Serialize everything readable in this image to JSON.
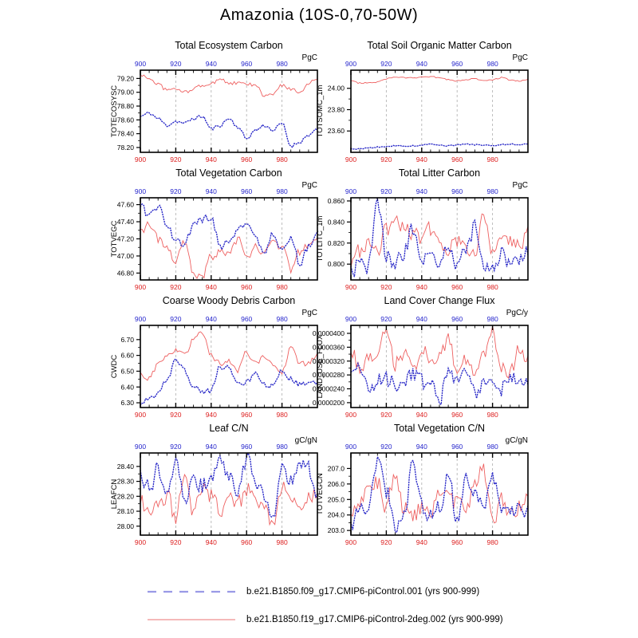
{
  "page_title": "Amazonia (10S-0,70-50W)",
  "colors": {
    "series_control_blue": "#2b2bc8",
    "series_2deg_red": "#ee6060",
    "top_axis_labels": "#2525cc",
    "bottom_axis_labels": "#dd2020",
    "grid": "#b5b5b5",
    "frame": "#000000",
    "legend_control_blue": "#9a9ae6",
    "legend_2deg_red": "#f2a2a2"
  },
  "legend": {
    "entries": [
      {
        "label": "b.e21.B1850.f09_g17.CMIP6-piControl.001 (yrs 900-999)",
        "style": "dashed",
        "color": "#9a9ae6"
      },
      {
        "label": "b.e21.B1850.f19_g17.CMIP6-piControl-2deg.002 (yrs 900-999)",
        "style": "solid",
        "color": "#f2a2a2"
      }
    ]
  },
  "chart_data": [
    {
      "type": "line",
      "title": "Total Ecosystem Carbon",
      "unit": "PgC",
      "ylabel": "TOTECOSYSC",
      "xlim": [
        900,
        1000
      ],
      "xticks": [
        900,
        920,
        940,
        960,
        980
      ],
      "grid_x": [
        920,
        940,
        960,
        980
      ],
      "ylim": [
        78.13,
        79.32
      ],
      "ytick_values": [
        79.2,
        79.0,
        78.8,
        78.6,
        78.4,
        78.2
      ],
      "ytick_labels": [
        "79.20",
        "79.00",
        "78.80",
        "78.60",
        "78.40",
        "78.20"
      ],
      "x": [
        900,
        905,
        910,
        915,
        920,
        925,
        930,
        935,
        940,
        945,
        950,
        955,
        960,
        965,
        970,
        975,
        980,
        985,
        990,
        995,
        1000
      ],
      "noise": 0.025,
      "series": [
        {
          "name": "b.e21.B1850.f09_g17.CMIP6-piControl.001",
          "values": [
            78.65,
            78.7,
            78.62,
            78.52,
            78.58,
            78.55,
            78.62,
            78.65,
            78.47,
            78.52,
            78.62,
            78.5,
            78.33,
            78.45,
            78.52,
            78.45,
            78.55,
            78.22,
            78.28,
            78.38,
            78.45
          ]
        },
        {
          "name": "b.e21.B1850.f19_g17.CMIP6-piControl-2deg.002",
          "values": [
            79.25,
            79.2,
            79.12,
            79.03,
            79.05,
            79.0,
            79.05,
            79.1,
            79.12,
            79.2,
            79.13,
            79.13,
            79.12,
            79.1,
            78.95,
            78.97,
            79.1,
            79.05,
            79.0,
            79.13,
            79.2
          ]
        }
      ]
    },
    {
      "type": "line",
      "title": "Total Soil Organic Matter Carbon",
      "unit": "PgC",
      "ylabel": "TOTSOMC_1m",
      "xlim": [
        900,
        1000
      ],
      "xticks": [
        900,
        920,
        940,
        960,
        980
      ],
      "grid_x": [
        920,
        940,
        960,
        980
      ],
      "ylim": [
        23.4,
        24.17
      ],
      "ytick_values": [
        24.0,
        23.8,
        23.6
      ],
      "ytick_labels": [
        "24.00",
        "23.80",
        "23.60"
      ],
      "x": [
        900,
        905,
        910,
        915,
        920,
        925,
        930,
        935,
        940,
        945,
        950,
        955,
        960,
        965,
        970,
        975,
        980,
        985,
        990,
        995,
        1000
      ],
      "noise": 0.006,
      "series": [
        {
          "name": "b.e21.B1850.f09_g17.CMIP6-piControl.001",
          "values": [
            23.43,
            23.43,
            23.44,
            23.45,
            23.45,
            23.46,
            23.46,
            23.46,
            23.47,
            23.48,
            23.47,
            23.46,
            23.47,
            23.48,
            23.47,
            23.47,
            23.46,
            23.47,
            23.48,
            23.47,
            23.48
          ]
        },
        {
          "name": "b.e21.B1850.f19_g17.CMIP6-piControl-2deg.002",
          "values": [
            24.07,
            24.05,
            24.05,
            24.06,
            24.09,
            24.1,
            24.1,
            24.1,
            24.1,
            24.11,
            24.1,
            24.08,
            24.07,
            24.08,
            24.09,
            24.07,
            24.08,
            24.1,
            24.08,
            24.07,
            24.08
          ]
        }
      ]
    },
    {
      "type": "line",
      "title": "Total Vegetation Carbon",
      "unit": "PgC",
      "ylabel": "TOTVEGC",
      "xlim": [
        900,
        1000
      ],
      "xticks": [
        900,
        920,
        940,
        960,
        980
      ],
      "grid_x": [
        920,
        940,
        960,
        980
      ],
      "ylim": [
        46.72,
        47.68
      ],
      "ytick_values": [
        47.6,
        47.4,
        47.2,
        47.0,
        46.8
      ],
      "ytick_labels": [
        "47.60",
        "47.40",
        "47.20",
        "47.00",
        "46.80"
      ],
      "x": [
        900,
        905,
        910,
        915,
        920,
        925,
        930,
        935,
        940,
        945,
        950,
        955,
        960,
        965,
        970,
        975,
        980,
        985,
        990,
        995,
        1000
      ],
      "noise": 0.05,
      "series": [
        {
          "name": "b.e21.B1850.f09_g17.CMIP6-piControl.001",
          "values": [
            47.6,
            47.45,
            47.57,
            47.38,
            47.18,
            47.15,
            47.35,
            47.42,
            47.45,
            47.12,
            47.15,
            47.3,
            47.37,
            47.25,
            47.0,
            47.25,
            47.1,
            47.2,
            46.92,
            47.1,
            47.25
          ]
        },
        {
          "name": "b.e21.B1850.f19_g17.CMIP6-piControl-2deg.002",
          "values": [
            47.3,
            47.36,
            47.2,
            47.08,
            46.95,
            47.15,
            46.8,
            46.75,
            47.0,
            47.05,
            47.0,
            47.2,
            47.0,
            47.1,
            47.05,
            47.15,
            47.1,
            46.85,
            47.05,
            47.15,
            47.2
          ]
        }
      ]
    },
    {
      "type": "line",
      "title": "Total Litter Carbon",
      "unit": "PgC",
      "ylabel": "TOTLITC_1m",
      "xlim": [
        900,
        1000
      ],
      "xticks": [
        900,
        920,
        940,
        960,
        980
      ],
      "grid_x": [
        920,
        940,
        960,
        980
      ],
      "ylim": [
        0.785,
        0.863
      ],
      "ytick_values": [
        0.86,
        0.84,
        0.82,
        0.8
      ],
      "ytick_labels": [
        "0.860",
        "0.840",
        "0.820",
        "0.800"
      ],
      "x": [
        900,
        905,
        910,
        915,
        920,
        925,
        930,
        935,
        940,
        945,
        950,
        955,
        960,
        965,
        970,
        975,
        980,
        985,
        990,
        995,
        1000
      ],
      "noise": 0.008,
      "series": [
        {
          "name": "b.e21.B1850.f09_g17.CMIP6-piControl.001",
          "values": [
            0.79,
            0.8,
            0.798,
            0.858,
            0.808,
            0.8,
            0.812,
            0.835,
            0.8,
            0.812,
            0.802,
            0.812,
            0.8,
            0.81,
            0.836,
            0.8,
            0.792,
            0.812,
            0.8,
            0.802,
            0.81
          ]
        },
        {
          "name": "b.e21.B1850.f19_g17.CMIP6-piControl-2deg.002",
          "values": [
            0.8,
            0.812,
            0.82,
            0.815,
            0.832,
            0.84,
            0.832,
            0.83,
            0.82,
            0.835,
            0.82,
            0.812,
            0.822,
            0.815,
            0.81,
            0.849,
            0.81,
            0.83,
            0.82,
            0.815,
            0.832
          ]
        }
      ]
    },
    {
      "type": "line",
      "title": "Coarse Woody Debris Carbon",
      "unit": "PgC",
      "ylabel": "CWDC",
      "xlim": [
        900,
        1000
      ],
      "xticks": [
        900,
        920,
        940,
        960,
        980
      ],
      "grid_x": [
        920,
        940,
        960,
        980
      ],
      "ylim": [
        6.27,
        6.79
      ],
      "ytick_values": [
        6.7,
        6.6,
        6.5,
        6.4,
        6.3
      ],
      "ytick_labels": [
        "6.70",
        "6.60",
        "6.50",
        "6.40",
        "6.30"
      ],
      "x": [
        900,
        905,
        910,
        915,
        920,
        925,
        930,
        935,
        940,
        945,
        950,
        955,
        960,
        965,
        970,
        975,
        980,
        985,
        990,
        995,
        1000
      ],
      "noise": 0.018,
      "series": [
        {
          "name": "b.e21.B1850.f09_g17.CMIP6-piControl.001",
          "values": [
            6.28,
            6.33,
            6.35,
            6.45,
            6.57,
            6.5,
            6.4,
            6.37,
            6.38,
            6.53,
            6.52,
            6.42,
            6.43,
            6.48,
            6.42,
            6.4,
            6.5,
            6.45,
            6.42,
            6.43,
            6.42
          ]
        },
        {
          "name": "b.e21.B1850.f19_g17.CMIP6-piControl-2deg.002",
          "values": [
            6.48,
            6.45,
            6.55,
            6.6,
            6.63,
            6.6,
            6.7,
            6.75,
            6.6,
            6.55,
            6.57,
            6.5,
            6.62,
            6.55,
            6.6,
            6.55,
            6.5,
            6.65,
            6.55,
            6.55,
            6.6
          ]
        }
      ]
    },
    {
      "type": "line",
      "title": "Land Cover Change Flux",
      "unit": "PgC/y",
      "ylabel": "LAND_USE_FLUX",
      "xlim": [
        900,
        1000
      ],
      "xticks": [
        900,
        920,
        940,
        960,
        980
      ],
      "grid_x": [
        920,
        940,
        960,
        980
      ],
      "ylim": [
        1.86e-05,
        4.23e-05
      ],
      "ytick_values": [
        4e-05,
        3.6e-05,
        3.2e-05,
        2.8e-05,
        2.4e-05,
        2e-05
      ],
      "ytick_labels": [
        "0.0000400",
        "0.0000360",
        "0.0000320",
        "0.0000280",
        "0.0000240",
        "0.0000200"
      ],
      "x": [
        900,
        905,
        910,
        915,
        920,
        925,
        930,
        935,
        940,
        945,
        950,
        955,
        960,
        965,
        970,
        975,
        980,
        985,
        990,
        995,
        1000
      ],
      "noise": 2.2e-06,
      "series": [
        {
          "name": "b.e21.B1850.f09_g17.CMIP6-piControl.001",
          "values": [
            2.8e-05,
            3e-05,
            2.4e-05,
            2.62e-05,
            2.7e-05,
            2.52e-05,
            2.62e-05,
            2.8e-05,
            2.62e-05,
            2.5e-05,
            2.05e-05,
            2.8e-05,
            2.7e-05,
            2.82e-05,
            2.25e-05,
            2.52e-05,
            2.62e-05,
            2.4e-05,
            2.8e-05,
            2.52e-05,
            2.5e-05
          ]
        },
        {
          "name": "b.e21.B1850.f19_g17.CMIP6-piControl-2deg.002",
          "values": [
            3.5e-05,
            3.02e-05,
            3.3e-05,
            3.52e-05,
            4.05e-05,
            3.12e-05,
            3.4e-05,
            2.92e-05,
            3.6e-05,
            3.1e-05,
            3.32e-05,
            3.8e-05,
            3.02e-05,
            3.22e-05,
            2.92e-05,
            3.3e-05,
            4.1e-05,
            3.02e-05,
            2.92e-05,
            3.5e-05,
            3.2e-05
          ]
        }
      ]
    },
    {
      "type": "line",
      "title": "Leaf C/N",
      "unit": "gC/gN",
      "ylabel": "LEAFCN",
      "xlim": [
        900,
        1000
      ],
      "xticks": [
        900,
        920,
        940,
        960,
        980
      ],
      "grid_x": [
        920,
        940,
        960,
        980
      ],
      "ylim": [
        27.94,
        28.49
      ],
      "ytick_values": [
        28.4,
        28.3,
        28.2,
        28.1,
        28.0
      ],
      "ytick_labels": [
        "28.40",
        "28.30",
        "28.20",
        "28.10",
        "28.00"
      ],
      "x": [
        900,
        905,
        910,
        915,
        920,
        925,
        930,
        935,
        940,
        945,
        950,
        955,
        960,
        965,
        970,
        975,
        980,
        985,
        990,
        995,
        1000
      ],
      "noise": 0.055,
      "series": [
        {
          "name": "b.e21.B1850.f09_g17.CMIP6-piControl.001",
          "values": [
            28.33,
            28.25,
            28.39,
            28.25,
            28.45,
            28.15,
            28.3,
            28.27,
            28.3,
            28.44,
            28.35,
            28.2,
            28.45,
            28.3,
            28.2,
            28.05,
            28.38,
            28.3,
            28.42,
            28.39,
            28.2
          ]
        },
        {
          "name": "b.e21.B1850.f19_g17.CMIP6-piControl-2deg.002",
          "values": [
            28.16,
            28.1,
            28.18,
            28.2,
            28.07,
            28.3,
            28.1,
            28.25,
            28.2,
            28.1,
            28.2,
            28.15,
            28.25,
            28.15,
            28.15,
            27.97,
            28.25,
            28.2,
            28.1,
            28.2,
            28.2
          ]
        }
      ]
    },
    {
      "type": "line",
      "title": "Total Vegetation C/N",
      "unit": "gC/gN",
      "ylabel": "TOTVEGCN",
      "xlim": [
        900,
        1000
      ],
      "xticks": [
        900,
        920,
        940,
        960,
        980
      ],
      "grid_x": [
        920,
        940,
        960,
        980
      ],
      "ylim": [
        202.7,
        208.0
      ],
      "ytick_values": [
        207.0,
        206.0,
        205.0,
        204.0,
        203.0
      ],
      "ytick_labels": [
        "207.0",
        "206.0",
        "205.0",
        "204.0",
        "203.0"
      ],
      "x": [
        900,
        905,
        910,
        915,
        920,
        925,
        930,
        935,
        940,
        945,
        950,
        955,
        960,
        965,
        970,
        975,
        980,
        985,
        990,
        995,
        1000
      ],
      "noise": 0.55,
      "series": [
        {
          "name": "b.e21.B1850.f09_g17.CMIP6-piControl.001",
          "values": [
            203.0,
            204.3,
            204.6,
            207.5,
            205.5,
            203.2,
            204.2,
            207.2,
            204.5,
            203.8,
            204.5,
            206.5,
            203.8,
            206.2,
            205.5,
            204.5,
            206.7,
            204.5,
            204.0,
            204.5,
            204.3
          ]
        },
        {
          "name": "b.e21.B1850.f19_g17.CMIP6-piControl-2deg.002",
          "values": [
            204.2,
            204.8,
            205.5,
            206.0,
            204.5,
            206.6,
            204.5,
            204.0,
            204.5,
            204.0,
            205.8,
            205.1,
            204.8,
            204.5,
            206.0,
            206.9,
            203.4,
            205.0,
            204.0,
            204.5,
            205.0
          ]
        }
      ]
    }
  ]
}
